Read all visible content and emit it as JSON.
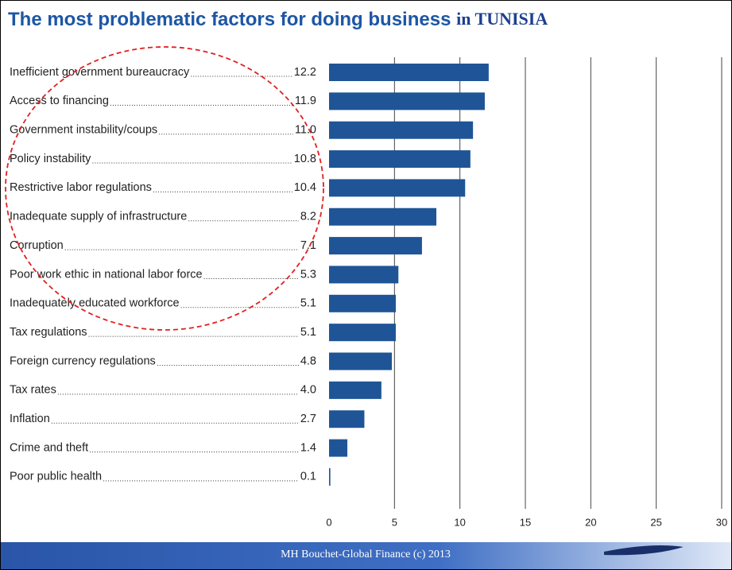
{
  "chart_data": {
    "type": "barh",
    "title": "The most problematic factors for doing business",
    "title_country": "in TUNISIA",
    "footer": "MH Bouchet-Global Finance (c) 2013",
    "categories": [
      "Inefficient government bureaucracy",
      "Access to financing",
      "Government instability/coups",
      "Policy instability",
      "Restrictive labor regulations",
      "Inadequate supply of infrastructure",
      "Corruption",
      "Poor work ethic in national labor force",
      "Inadequately educated workforce",
      "Tax regulations",
      "Foreign currency regulations",
      "Tax rates",
      "Inflation",
      "Crime and theft",
      "Poor public health"
    ],
    "values": [
      12.2,
      11.9,
      11.0,
      10.8,
      10.4,
      8.2,
      7.1,
      5.3,
      5.1,
      5.1,
      4.8,
      4.0,
      2.7,
      1.4,
      0.1
    ],
    "value_labels": [
      "12.2",
      "11.9",
      "11.0",
      "10.8",
      "10.4",
      "8.2",
      "7.1",
      "5.3",
      "5.1",
      "5.1",
      "4.8",
      "4.0",
      "2.7",
      "1.4",
      "0.1"
    ],
    "color": "#1f5596",
    "xlim": [
      0,
      30
    ],
    "xticks": [
      0,
      5,
      10,
      15,
      20,
      25,
      30
    ],
    "grid": true
  }
}
